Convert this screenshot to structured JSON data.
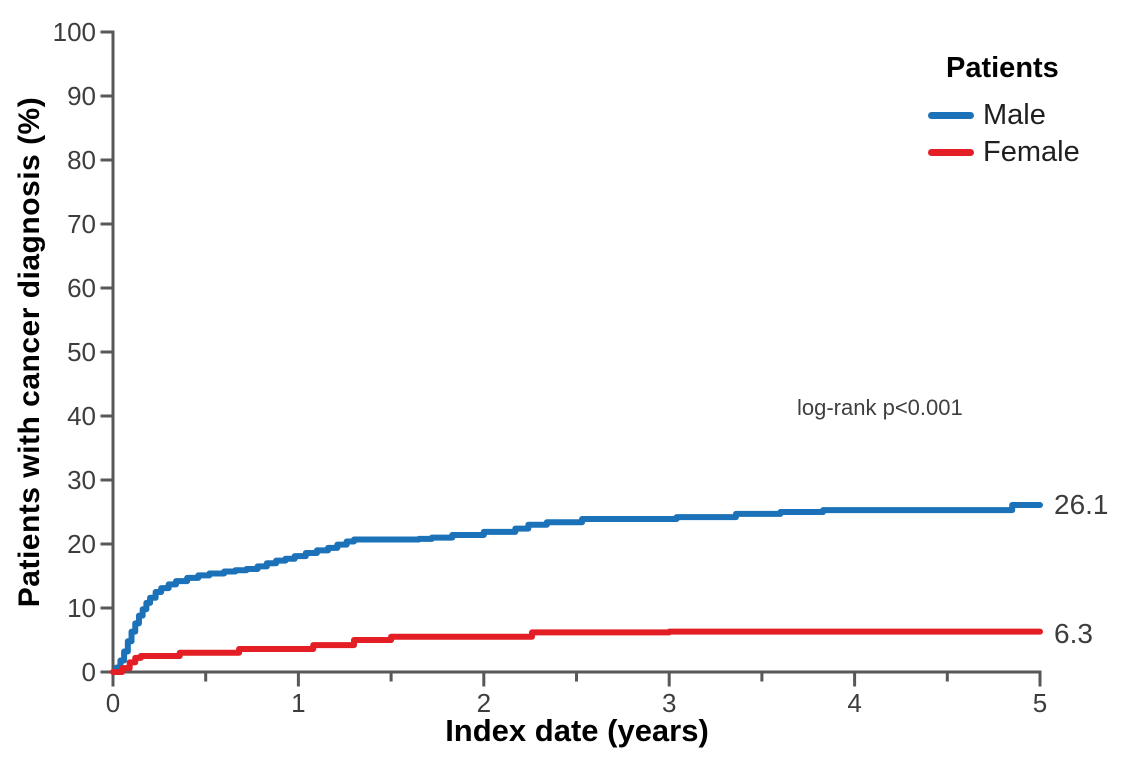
{
  "chart_data": {
    "type": "line",
    "subtype": "kaplan-meier-step",
    "title": "",
    "xlabel": "Index date (years)",
    "ylabel": "Patients with cancer diagnosis (%)",
    "xlim": [
      0,
      5
    ],
    "ylim": [
      0,
      100
    ],
    "x_major_ticks": [
      0,
      1,
      2,
      3,
      4,
      5
    ],
    "x_minor_ticks": [
      0.5,
      1.5,
      2.5,
      3.5,
      4.5
    ],
    "y_major_ticks": [
      0,
      10,
      20,
      30,
      40,
      50,
      60,
      70,
      80,
      90,
      100
    ],
    "grid": "off",
    "annotation": "log-rank p<0.001",
    "axis_color": "#58585a",
    "tick_label_color": "#3d3d3d",
    "legend": {
      "title": "Patients",
      "position": "top-right",
      "entries": [
        {
          "label": "Male",
          "color": "#1b72b8"
        },
        {
          "label": "Female",
          "color": "#e31e25"
        }
      ]
    },
    "series": [
      {
        "name": "Male",
        "color": "#1b72b8",
        "end_label": "26.1",
        "end_value": 26.1,
        "step": true,
        "points": [
          [
            0,
            0
          ],
          [
            0.02,
            0.7
          ],
          [
            0.04,
            1.8
          ],
          [
            0.06,
            3.2
          ],
          [
            0.08,
            4.8
          ],
          [
            0.1,
            6.3
          ],
          [
            0.12,
            7.6
          ],
          [
            0.14,
            8.8
          ],
          [
            0.16,
            9.8
          ],
          [
            0.18,
            10.8
          ],
          [
            0.2,
            11.6
          ],
          [
            0.23,
            12.5
          ],
          [
            0.26,
            13.1
          ],
          [
            0.3,
            13.7
          ],
          [
            0.34,
            14.2
          ],
          [
            0.4,
            14.7
          ],
          [
            0.46,
            15.1
          ],
          [
            0.52,
            15.4
          ],
          [
            0.6,
            15.7
          ],
          [
            0.66,
            15.9
          ],
          [
            0.72,
            16.1
          ],
          [
            0.78,
            16.5
          ],
          [
            0.83,
            17.0
          ],
          [
            0.88,
            17.4
          ],
          [
            0.93,
            17.7
          ],
          [
            0.98,
            18.1
          ],
          [
            1.04,
            18.6
          ],
          [
            1.1,
            19.0
          ],
          [
            1.16,
            19.4
          ],
          [
            1.21,
            19.9
          ],
          [
            1.26,
            20.4
          ],
          [
            1.3,
            20.7
          ],
          [
            1.65,
            20.8
          ],
          [
            1.72,
            21.0
          ],
          [
            1.83,
            21.4
          ],
          [
            2.0,
            21.9
          ],
          [
            2.17,
            22.4
          ],
          [
            2.24,
            23.0
          ],
          [
            2.34,
            23.4
          ],
          [
            2.53,
            23.9
          ],
          [
            3.04,
            24.2
          ],
          [
            3.36,
            24.7
          ],
          [
            3.6,
            25.0
          ],
          [
            3.83,
            25.3
          ],
          [
            4.85,
            26.1
          ],
          [
            5.0,
            26.1
          ]
        ]
      },
      {
        "name": "Female",
        "color": "#e31e25",
        "end_label": "6.3",
        "end_value": 6.3,
        "step": true,
        "points": [
          [
            0,
            0
          ],
          [
            0.05,
            0.6
          ],
          [
            0.09,
            1.5
          ],
          [
            0.12,
            2.2
          ],
          [
            0.15,
            2.5
          ],
          [
            0.36,
            3.0
          ],
          [
            0.68,
            3.6
          ],
          [
            1.08,
            4.2
          ],
          [
            1.3,
            5.0
          ],
          [
            1.5,
            5.5
          ],
          [
            2.26,
            6.2
          ],
          [
            3.0,
            6.3
          ],
          [
            5.0,
            6.3
          ]
        ]
      }
    ]
  }
}
